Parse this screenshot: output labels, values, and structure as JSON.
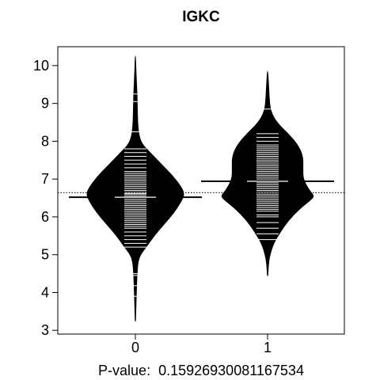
{
  "chart_data": {
    "type": "beanplot",
    "title": "IGKC",
    "xlabel_prefix": "P-value:",
    "p_value": "0.15926930081167534",
    "categories": [
      "0",
      "1"
    ],
    "ylim": [
      2.9,
      10.5
    ],
    "yticks": [
      3,
      4,
      5,
      6,
      7,
      8,
      9,
      10
    ],
    "overall_mean": 6.64,
    "groups": [
      {
        "name": "0",
        "mean": 6.52,
        "mode": 6.6,
        "density": [
          [
            3.25,
            0.003
          ],
          [
            3.6,
            0.01
          ],
          [
            4.0,
            0.02
          ],
          [
            4.4,
            0.03
          ],
          [
            4.8,
            0.05
          ],
          [
            5.0,
            0.1
          ],
          [
            5.2,
            0.22
          ],
          [
            5.5,
            0.38
          ],
          [
            5.8,
            0.58
          ],
          [
            6.1,
            0.78
          ],
          [
            6.4,
            0.93
          ],
          [
            6.6,
            1.0
          ],
          [
            6.8,
            0.93
          ],
          [
            7.1,
            0.75
          ],
          [
            7.4,
            0.52
          ],
          [
            7.7,
            0.3
          ],
          [
            7.9,
            0.15
          ],
          [
            8.1,
            0.08
          ],
          [
            8.4,
            0.05
          ],
          [
            8.8,
            0.04
          ],
          [
            9.2,
            0.035
          ],
          [
            9.6,
            0.02
          ],
          [
            10.0,
            0.008
          ],
          [
            10.25,
            0.002
          ]
        ],
        "observations": [
          3.9,
          4.18,
          4.45,
          4.5,
          5.2,
          5.3,
          5.4,
          5.5,
          5.6,
          5.7,
          5.75,
          5.8,
          5.85,
          5.9,
          5.95,
          6.0,
          6.05,
          6.1,
          6.15,
          6.2,
          6.25,
          6.3,
          6.35,
          6.4,
          6.45,
          6.5,
          6.55,
          6.6,
          6.62,
          6.65,
          6.7,
          6.75,
          6.8,
          6.85,
          6.9,
          6.95,
          7.0,
          7.05,
          7.1,
          7.15,
          7.2,
          7.3,
          7.4,
          7.5,
          7.6,
          7.7,
          7.8,
          8.25,
          9.05,
          9.25
        ]
      },
      {
        "name": "1",
        "mean": 6.94,
        "mode": 6.5,
        "density": [
          [
            4.45,
            0.003
          ],
          [
            4.8,
            0.02
          ],
          [
            5.0,
            0.05
          ],
          [
            5.3,
            0.12
          ],
          [
            5.6,
            0.26
          ],
          [
            5.9,
            0.42
          ],
          [
            6.2,
            0.64
          ],
          [
            6.45,
            0.88
          ],
          [
            6.55,
            0.95
          ],
          [
            6.7,
            0.85
          ],
          [
            7.0,
            0.72
          ],
          [
            7.3,
            0.72
          ],
          [
            7.6,
            0.72
          ],
          [
            7.9,
            0.62
          ],
          [
            8.2,
            0.42
          ],
          [
            8.5,
            0.18
          ],
          [
            8.8,
            0.06
          ],
          [
            9.1,
            0.035
          ],
          [
            9.5,
            0.02
          ],
          [
            9.85,
            0.003
          ]
        ],
        "observations": [
          5.4,
          5.55,
          5.7,
          5.85,
          6.0,
          6.05,
          6.15,
          6.2,
          6.25,
          6.3,
          6.35,
          6.4,
          6.45,
          6.5,
          6.55,
          6.6,
          6.65,
          6.7,
          6.75,
          6.8,
          6.85,
          6.9,
          6.95,
          7.0,
          7.05,
          7.1,
          7.15,
          7.2,
          7.25,
          7.3,
          7.35,
          7.4,
          7.45,
          7.5,
          7.55,
          7.6,
          7.65,
          7.7,
          7.75,
          7.8,
          7.85,
          7.9,
          8.0,
          8.1,
          8.2,
          8.85
        ]
      }
    ]
  }
}
